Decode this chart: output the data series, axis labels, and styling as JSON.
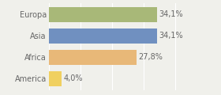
{
  "categories": [
    "America",
    "Africa",
    "Asia",
    "Europa"
  ],
  "values": [
    4.0,
    27.8,
    34.1,
    34.1
  ],
  "labels": [
    "4,0%",
    "27,8%",
    "34,1%",
    "34,1%"
  ],
  "bar_colors": [
    "#f0d060",
    "#e8b878",
    "#7090c0",
    "#a8b878"
  ],
  "xlim": [
    0,
    46
  ],
  "background_color": "#f0f0eb",
  "bar_height": 0.72,
  "label_fontsize": 7.0,
  "category_fontsize": 7.0,
  "text_color": "#666666"
}
